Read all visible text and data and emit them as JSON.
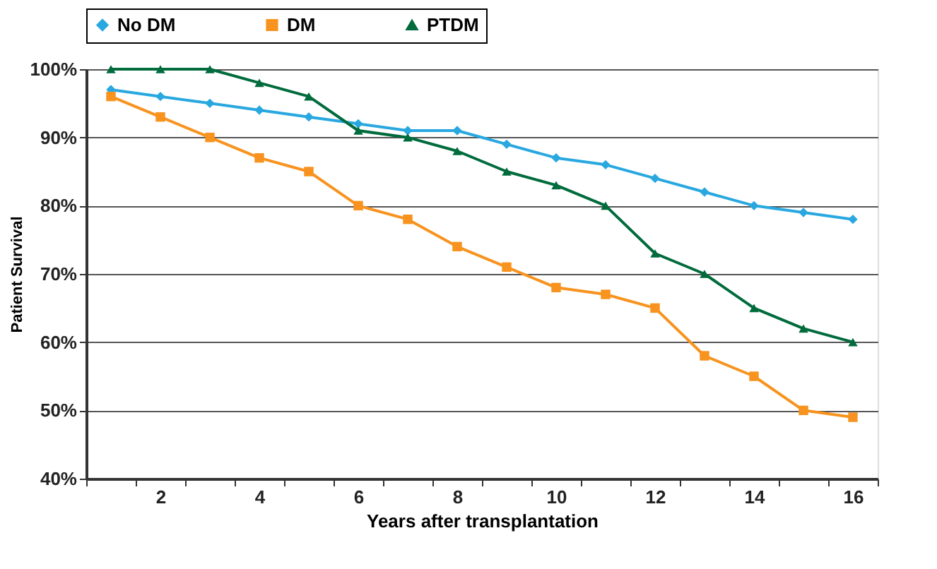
{
  "chart_data": {
    "type": "line",
    "xlabel": "Years after transplantation",
    "ylabel": "Patient Survival",
    "categories": [
      null,
      "2",
      null,
      "4",
      null,
      "6",
      null,
      "8",
      null,
      "10",
      null,
      "12",
      null,
      "14",
      null,
      "16"
    ],
    "series": [
      {
        "name": "No DM",
        "color": "#29a8e0",
        "marker": "diamond",
        "values": [
          97,
          96,
          95,
          94,
          93,
          92,
          91,
          91,
          89,
          87,
          86,
          84,
          82,
          80,
          79,
          78
        ]
      },
      {
        "name": "DM",
        "color": "#f7931e",
        "marker": "square",
        "values": [
          96,
          93,
          90,
          87,
          85,
          80,
          78,
          74,
          71,
          68,
          67,
          65,
          58,
          55,
          50,
          49
        ]
      },
      {
        "name": "PTDM",
        "color": "#006b3c",
        "marker": "triangle",
        "values": [
          100,
          100,
          100,
          98,
          96,
          91,
          90,
          88,
          85,
          83,
          80,
          73,
          70,
          65,
          62,
          60
        ]
      }
    ],
    "ylim": [
      40,
      100
    ],
    "yticks": [
      {
        "value": 40,
        "label": "40%"
      },
      {
        "value": 50,
        "label": "50%"
      },
      {
        "value": 60,
        "label": "60%"
      },
      {
        "value": 70,
        "label": "70%"
      },
      {
        "value": 80,
        "label": "80%"
      },
      {
        "value": 90,
        "label": "90%"
      },
      {
        "value": 100,
        "label": "100%"
      }
    ],
    "grid": "y",
    "legend": "top",
    "line_style": "solid"
  }
}
